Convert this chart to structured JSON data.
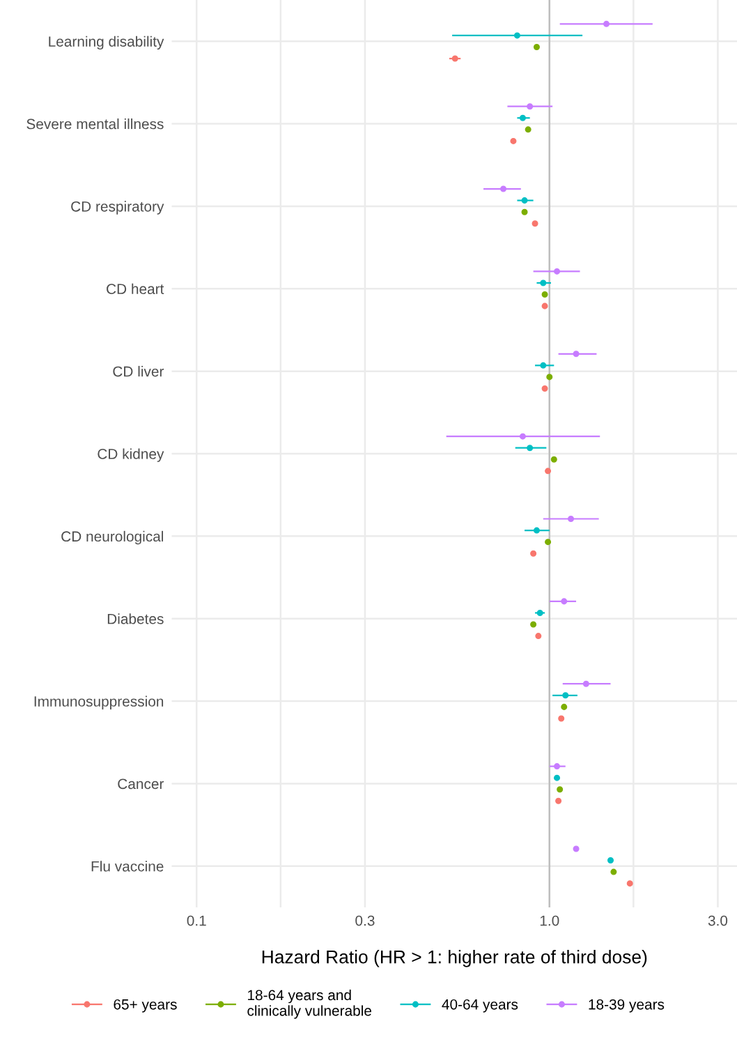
{
  "chart_data": {
    "type": "scatter",
    "orientation": "horizontal",
    "log": "x",
    "grid": true,
    "legend": "bottom",
    "marker": "circle",
    "xlabel": "Hazard Ratio (HR > 1: higher rate of third dose)",
    "categories": [
      "Learning disability",
      "Severe mental illness",
      "CD respiratory",
      "CD heart",
      "CD liver",
      "CD kidney",
      "CD neurological",
      "Diabetes",
      "Immunosuppression",
      "Cancer",
      "Flu vaccine"
    ],
    "xlim": [
      0.085,
      3.4
    ],
    "xticks": [
      0.1,
      {
        "value": 0.173,
        "label": null
      },
      0.3,
      {
        "value": 1.0,
        "label": "1.0"
      },
      {
        "value": 1.73,
        "label": null
      },
      {
        "value": 3.0,
        "label": "3.0"
      }
    ],
    "ref_lines": [
      {
        "axis": "x",
        "value": 1.0,
        "color": "#bebebe"
      }
    ],
    "series": [
      {
        "name": "65+ years",
        "color": "#f8766d",
        "values": [
          0.54,
          0.79,
          0.91,
          0.97,
          0.97,
          0.99,
          0.9,
          0.93,
          1.08,
          1.06,
          1.69
        ],
        "errors": [
          [
            0.52,
            0.56
          ],
          null,
          null,
          null,
          null,
          null,
          null,
          null,
          null,
          null,
          null
        ]
      },
      {
        "name": "18-64 years and\nclinically vulnerable",
        "color": "#7cae00",
        "values": [
          0.92,
          0.87,
          0.85,
          0.97,
          1.0,
          1.03,
          0.99,
          0.9,
          1.1,
          1.07,
          1.52
        ],
        "errors": [
          null,
          null,
          null,
          null,
          null,
          null,
          null,
          null,
          null,
          null,
          null
        ]
      },
      {
        "name": "40-64 years",
        "color": "#00bfc4",
        "values": [
          0.81,
          0.84,
          0.85,
          0.96,
          0.96,
          0.88,
          0.92,
          0.94,
          1.11,
          1.05,
          1.49
        ],
        "errors": [
          [
            0.53,
            1.24
          ],
          [
            0.81,
            0.88
          ],
          [
            0.81,
            0.9
          ],
          [
            0.92,
            1.01
          ],
          [
            0.91,
            1.03
          ],
          [
            0.8,
            0.98
          ],
          [
            0.85,
            1.0
          ],
          [
            0.91,
            0.97
          ],
          [
            1.02,
            1.2
          ],
          null,
          null
        ]
      },
      {
        "name": "18-39 years",
        "color": "#c77cff",
        "values": [
          1.45,
          0.88,
          0.74,
          1.05,
          1.19,
          0.84,
          1.15,
          1.1,
          1.27,
          1.05,
          1.19
        ],
        "errors": [
          [
            1.07,
            1.96
          ],
          [
            0.76,
            1.02
          ],
          [
            0.65,
            0.83
          ],
          [
            0.9,
            1.22
          ],
          [
            1.06,
            1.36
          ],
          [
            0.51,
            1.39
          ],
          [
            0.96,
            1.38
          ],
          [
            1.0,
            1.19
          ],
          [
            1.09,
            1.49
          ],
          [
            1.0,
            1.11
          ],
          null
        ]
      }
    ]
  }
}
